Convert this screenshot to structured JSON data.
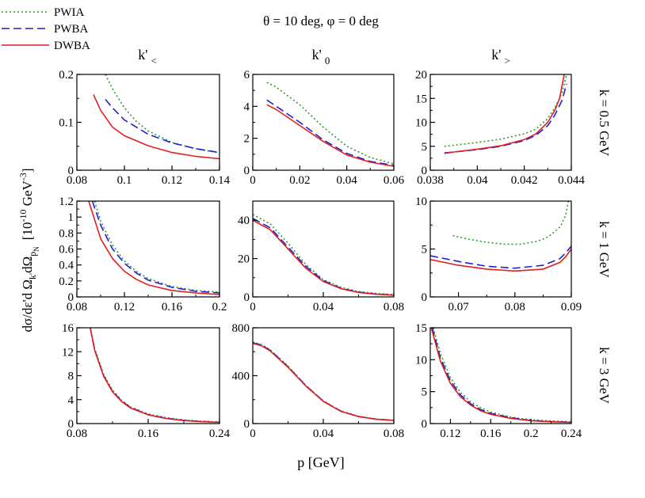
{
  "figure": {
    "title": "θ = 10 deg,  φ = 0 deg",
    "xlabel": "p [GeV]",
    "ylabel_main": "dσ/dε'd Ω",
    "ylabel_sub1": "k'",
    "ylabel_mid": "dΩ",
    "ylabel_sub2": "p",
    "ylabel_sub2b": "N",
    "ylabel_units_open": "[10",
    "ylabel_units_exp": "-10",
    "ylabel_units_unit": " GeV",
    "ylabel_units_exp2": "-3",
    "ylabel_units_close": "]"
  },
  "legend": {
    "position": "top-left",
    "entries": [
      {
        "label": "PWIA",
        "color": "#2e9a2e",
        "dash": "2,3"
      },
      {
        "label": "PWBA",
        "color": "#1f1fd6",
        "dash": "10,5"
      },
      {
        "label": "DWBA",
        "color": "#e02020",
        "dash": ""
      }
    ]
  },
  "column_headers": [
    {
      "base": "k'",
      "sub": "<"
    },
    {
      "base": "k'",
      "sub": "0"
    },
    {
      "base": "k'",
      "sub": ">"
    }
  ],
  "row_labels": [
    "k = 0.5 GeV",
    "k = 1 GeV",
    "k = 3 GeV"
  ],
  "chart_data": [
    {
      "type": "line",
      "row": 0,
      "col": 0,
      "xlim": [
        0.08,
        0.14
      ],
      "ylim": [
        0,
        0.2
      ],
      "xticks": [
        "0.08",
        "0.1",
        "0.12",
        "0.14"
      ],
      "yticks": [
        "0",
        "0.1",
        "0.2"
      ],
      "series": [
        {
          "name": "PWIA",
          "x": [
            0.092,
            0.095,
            0.1,
            0.105,
            0.11,
            0.12,
            0.13,
            0.14
          ],
          "y": [
            0.2,
            0.17,
            0.13,
            0.102,
            0.082,
            0.058,
            0.045,
            0.036
          ]
        },
        {
          "name": "PWBA",
          "x": [
            0.092,
            0.095,
            0.1,
            0.11,
            0.12,
            0.13,
            0.14
          ],
          "y": [
            0.148,
            0.13,
            0.105,
            0.075,
            0.057,
            0.045,
            0.037
          ]
        },
        {
          "name": "DWBA",
          "x": [
            0.087,
            0.09,
            0.095,
            0.1,
            0.11,
            0.12,
            0.13,
            0.14
          ],
          "y": [
            0.158,
            0.125,
            0.09,
            0.072,
            0.051,
            0.037,
            0.029,
            0.024
          ]
        }
      ]
    },
    {
      "type": "line",
      "row": 0,
      "col": 1,
      "xlim": [
        0,
        0.06
      ],
      "ylim": [
        0,
        6
      ],
      "xticks": [
        "0",
        "0.02",
        "0.04",
        "0.06"
      ],
      "yticks": [
        "0",
        "2",
        "4",
        "6"
      ],
      "series": [
        {
          "name": "PWIA",
          "x": [
            0.006,
            0.01,
            0.02,
            0.03,
            0.04,
            0.05,
            0.06
          ],
          "y": [
            5.5,
            5.2,
            4.1,
            2.7,
            1.5,
            0.8,
            0.4
          ]
        },
        {
          "name": "PWBA",
          "x": [
            0.006,
            0.01,
            0.02,
            0.03,
            0.04,
            0.05,
            0.06
          ],
          "y": [
            4.4,
            4.0,
            3.0,
            1.9,
            1.05,
            0.55,
            0.3
          ]
        },
        {
          "name": "DWBA",
          "x": [
            0.006,
            0.01,
            0.02,
            0.03,
            0.04,
            0.05,
            0.06
          ],
          "y": [
            4.1,
            3.8,
            2.8,
            1.8,
            0.95,
            0.5,
            0.25
          ]
        }
      ]
    },
    {
      "type": "line",
      "row": 0,
      "col": 2,
      "xlim": [
        0.038,
        0.044
      ],
      "ylim": [
        0,
        20
      ],
      "xticks": [
        "0.038",
        "0.04",
        "0.042",
        "0.044"
      ],
      "yticks": [
        "0",
        "5",
        "10",
        "15",
        "20"
      ],
      "series": [
        {
          "name": "PWIA",
          "x": [
            0.0386,
            0.039,
            0.04,
            0.041,
            0.042,
            0.0425,
            0.043,
            0.0433,
            0.0436,
            0.0438
          ],
          "y": [
            5,
            5.2,
            5.8,
            6.5,
            7.6,
            8.6,
            10.8,
            13,
            16,
            20
          ]
        },
        {
          "name": "PWBA",
          "x": [
            0.0386,
            0.039,
            0.04,
            0.041,
            0.042,
            0.0425,
            0.043,
            0.0433,
            0.0436,
            0.0438
          ],
          "y": [
            3.6,
            3.8,
            4.3,
            5,
            6.2,
            7.3,
            9.3,
            11.5,
            14.5,
            18
          ]
        },
        {
          "name": "DWBA",
          "x": [
            0.0386,
            0.039,
            0.04,
            0.041,
            0.042,
            0.0425,
            0.043,
            0.0433,
            0.0435,
            0.0437
          ],
          "y": [
            3.5,
            3.8,
            4.4,
            5.1,
            6.4,
            7.6,
            10,
            12.5,
            15,
            20
          ]
        }
      ]
    },
    {
      "type": "line",
      "row": 1,
      "col": 0,
      "xlim": [
        0.08,
        0.2
      ],
      "ylim": [
        0,
        1.2
      ],
      "xticks": [
        "0.08",
        "0.12",
        "0.16",
        "0.2"
      ],
      "yticks": [
        "0",
        "0.2",
        "0.4",
        "0.6",
        "0.8",
        "1",
        "1.2"
      ],
      "series": [
        {
          "name": "PWIA",
          "x": [
            0.095,
            0.1,
            0.11,
            0.12,
            0.13,
            0.14,
            0.16,
            0.18,
            0.2
          ],
          "y": [
            1.2,
            0.95,
            0.65,
            0.45,
            0.32,
            0.23,
            0.13,
            0.08,
            0.06
          ]
        },
        {
          "name": "PWBA",
          "x": [
            0.093,
            0.1,
            0.11,
            0.12,
            0.13,
            0.14,
            0.16,
            0.18,
            0.2
          ],
          "y": [
            1.2,
            0.9,
            0.6,
            0.42,
            0.3,
            0.21,
            0.12,
            0.07,
            0.05
          ]
        },
        {
          "name": "DWBA",
          "x": [
            0.09,
            0.1,
            0.11,
            0.12,
            0.13,
            0.14,
            0.16,
            0.18,
            0.2
          ],
          "y": [
            1.2,
            0.73,
            0.48,
            0.32,
            0.22,
            0.15,
            0.08,
            0.05,
            0.03
          ]
        }
      ]
    },
    {
      "type": "line",
      "row": 1,
      "col": 1,
      "xlim": [
        0,
        0.08
      ],
      "ylim": [
        0,
        50
      ],
      "xticks": [
        "0",
        "0.04",
        "0.08"
      ],
      "yticks": [
        "0",
        "20",
        "40"
      ],
      "series": [
        {
          "name": "PWIA",
          "x": [
            0,
            0.01,
            0.02,
            0.03,
            0.04,
            0.05,
            0.06,
            0.07,
            0.08
          ],
          "y": [
            43,
            38,
            28,
            17,
            9,
            5,
            2.8,
            1.8,
            1.2
          ]
        },
        {
          "name": "PWBA",
          "x": [
            0,
            0.01,
            0.02,
            0.03,
            0.04,
            0.05,
            0.06,
            0.07,
            0.08
          ],
          "y": [
            41,
            36,
            26,
            16,
            8.5,
            4.5,
            2.5,
            1.5,
            1
          ]
        },
        {
          "name": "DWBA",
          "x": [
            0,
            0.01,
            0.02,
            0.03,
            0.04,
            0.05,
            0.06,
            0.07,
            0.08
          ],
          "y": [
            40,
            35,
            25,
            15,
            8,
            4.3,
            2.3,
            1.4,
            0.9
          ]
        }
      ]
    },
    {
      "type": "line",
      "row": 1,
      "col": 2,
      "xlim": [
        0.065,
        0.09
      ],
      "ylim": [
        0,
        10
      ],
      "xticks": [
        "0.07",
        "0.08",
        "0.09"
      ],
      "yticks": [
        "0",
        "5",
        "10"
      ],
      "series": [
        {
          "name": "PWIA",
          "x": [
            0.069,
            0.072,
            0.075,
            0.078,
            0.081,
            0.084,
            0.086,
            0.088,
            0.089,
            0.0895
          ],
          "y": [
            6.4,
            6.0,
            5.7,
            5.5,
            5.5,
            5.8,
            6.3,
            7.3,
            8.5,
            10
          ]
        },
        {
          "name": "PWBA",
          "x": [
            0.065,
            0.07,
            0.075,
            0.08,
            0.085,
            0.088,
            0.089,
            0.09
          ],
          "y": [
            4.3,
            3.7,
            3.2,
            3.0,
            3.3,
            4.0,
            4.6,
            5.3
          ]
        },
        {
          "name": "DWBA",
          "x": [
            0.065,
            0.07,
            0.075,
            0.08,
            0.085,
            0.088,
            0.089,
            0.09
          ],
          "y": [
            3.9,
            3.3,
            2.9,
            2.7,
            2.9,
            3.6,
            4.2,
            5.0
          ]
        }
      ]
    },
    {
      "type": "line",
      "row": 2,
      "col": 0,
      "xlim": [
        0.08,
        0.24
      ],
      "ylim": [
        0,
        16
      ],
      "xticks": [
        "0.08",
        "0.16",
        "0.24"
      ],
      "yticks": [
        "0",
        "4",
        "8",
        "12",
        "16"
      ],
      "series": [
        {
          "name": "PWIA",
          "x": [
            0.095,
            0.1,
            0.11,
            0.12,
            0.13,
            0.14,
            0.16,
            0.18,
            0.2,
            0.22,
            0.24
          ],
          "y": [
            16,
            12.5,
            8.2,
            5.6,
            3.9,
            2.8,
            1.6,
            1.0,
            0.6,
            0.4,
            0.25
          ]
        },
        {
          "name": "PWBA",
          "x": [
            0.095,
            0.1,
            0.11,
            0.12,
            0.13,
            0.14,
            0.16,
            0.18,
            0.2,
            0.22,
            0.24
          ],
          "y": [
            16,
            12.3,
            8.0,
            5.4,
            3.8,
            2.7,
            1.5,
            0.9,
            0.55,
            0.35,
            0.22
          ]
        },
        {
          "name": "DWBA",
          "x": [
            0.095,
            0.1,
            0.11,
            0.12,
            0.13,
            0.14,
            0.16,
            0.18,
            0.2,
            0.22,
            0.24
          ],
          "y": [
            16,
            12.2,
            7.9,
            5.3,
            3.7,
            2.6,
            1.45,
            0.85,
            0.5,
            0.32,
            0.2
          ]
        }
      ]
    },
    {
      "type": "line",
      "row": 2,
      "col": 1,
      "xlim": [
        0,
        0.08
      ],
      "ylim": [
        0,
        800
      ],
      "xticks": [
        "0",
        "0.04",
        "0.08"
      ],
      "yticks": [
        "0",
        "400",
        "800"
      ],
      "series": [
        {
          "name": "PWIA",
          "x": [
            0,
            0.005,
            0.01,
            0.02,
            0.03,
            0.04,
            0.05,
            0.06,
            0.07,
            0.08
          ],
          "y": [
            680,
            660,
            615,
            480,
            320,
            190,
            105,
            60,
            38,
            28
          ]
        },
        {
          "name": "PWBA",
          "x": [
            0,
            0.005,
            0.01,
            0.02,
            0.03,
            0.04,
            0.05,
            0.06,
            0.07,
            0.08
          ],
          "y": [
            675,
            655,
            610,
            475,
            318,
            188,
            104,
            59,
            37,
            27
          ]
        },
        {
          "name": "DWBA",
          "x": [
            0,
            0.005,
            0.01,
            0.02,
            0.03,
            0.04,
            0.05,
            0.06,
            0.07,
            0.08
          ],
          "y": [
            670,
            650,
            605,
            470,
            315,
            185,
            102,
            58,
            36,
            26
          ]
        }
      ]
    },
    {
      "type": "line",
      "row": 2,
      "col": 2,
      "xlim": [
        0.1,
        0.24
      ],
      "ylim": [
        0,
        15
      ],
      "xticks": [
        "0.12",
        "0.16",
        "0.2",
        "0.24"
      ],
      "yticks": [
        "0",
        "5",
        "10",
        "15"
      ],
      "series": [
        {
          "name": "PWIA",
          "x": [
            0.103,
            0.11,
            0.12,
            0.13,
            0.14,
            0.15,
            0.16,
            0.18,
            0.2,
            0.22,
            0.24
          ],
          "y": [
            15,
            11,
            7.2,
            4.9,
            3.4,
            2.5,
            1.8,
            1.0,
            0.6,
            0.4,
            0.3
          ]
        },
        {
          "name": "PWBA",
          "x": [
            0.102,
            0.11,
            0.12,
            0.13,
            0.14,
            0.15,
            0.16,
            0.18,
            0.2,
            0.22,
            0.24
          ],
          "y": [
            15,
            10.3,
            6.7,
            4.5,
            3.1,
            2.2,
            1.6,
            0.9,
            0.5,
            0.32,
            0.22
          ]
        },
        {
          "name": "DWBA",
          "x": [
            0.101,
            0.11,
            0.12,
            0.13,
            0.14,
            0.15,
            0.16,
            0.18,
            0.2,
            0.22,
            0.24
          ],
          "y": [
            15,
            9.8,
            6.3,
            4.2,
            2.9,
            2.0,
            1.45,
            0.8,
            0.45,
            0.28,
            0.18
          ]
        }
      ]
    }
  ]
}
